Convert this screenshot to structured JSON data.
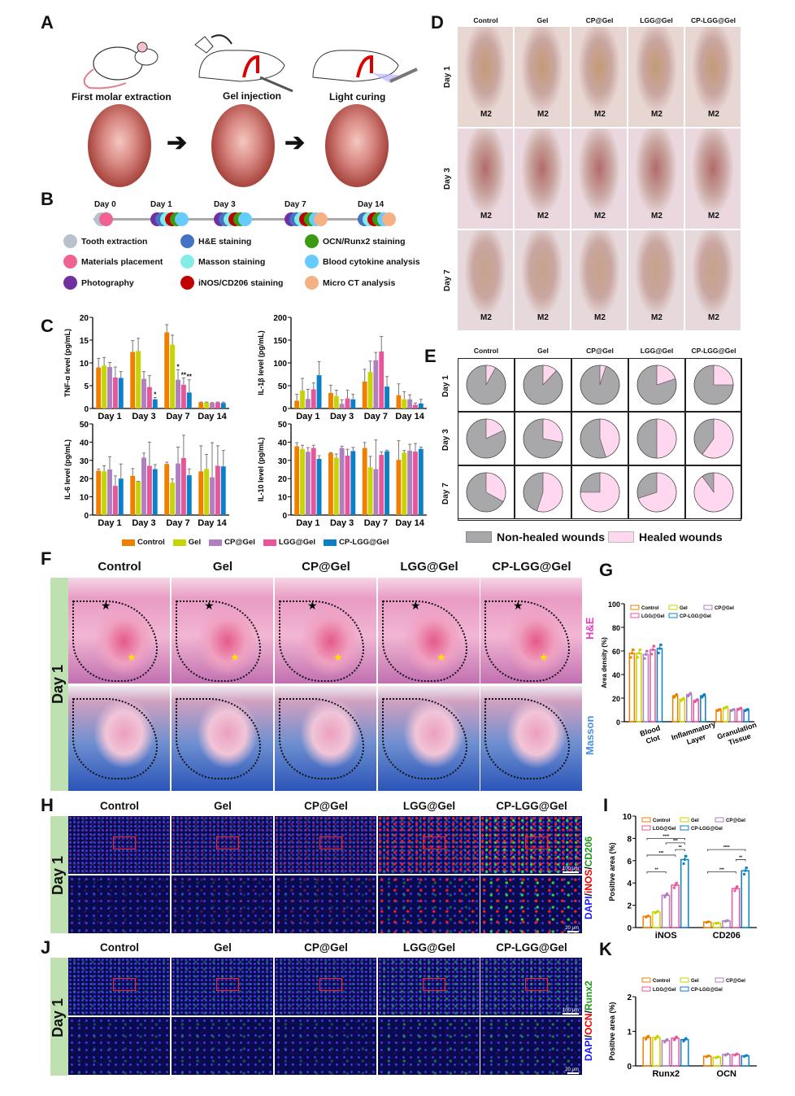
{
  "panels": {
    "A": "A",
    "B": "B",
    "C": "C",
    "D": "D",
    "E": "E",
    "F": "F",
    "G": "G",
    "H": "H",
    "I": "I",
    "J": "J",
    "K": "K"
  },
  "panel_a": {
    "steps": [
      "First molar extraction",
      "Gel injection",
      "Light curing"
    ]
  },
  "panel_b": {
    "days": [
      "Day 0",
      "Day 1",
      "Day 3",
      "Day 7",
      "Day 14"
    ],
    "legend": [
      {
        "label": "Tooth extraction",
        "color": "#b8c2cc"
      },
      {
        "label": "H&E staining",
        "color": "#4472c4"
      },
      {
        "label": "OCN/Runx2 staining",
        "color": "#3a9a10"
      },
      {
        "label": "Materials placement",
        "color": "#f06292"
      },
      {
        "label": "Masson staining",
        "color": "#84ece6"
      },
      {
        "label": "Blood cytokine analysis",
        "color": "#66ccff"
      },
      {
        "label": "Photography",
        "color": "#7030a0"
      },
      {
        "label": "iNOS/CD206 staining",
        "color": "#c00000"
      },
      {
        "label": "Micro CT analysis",
        "color": "#f4b183"
      }
    ]
  },
  "groups": [
    "Control",
    "Gel",
    "CP@Gel",
    "LGG@Gel",
    "CP-LGG@Gel"
  ],
  "group_colors": [
    "#f07f00",
    "#c8d400",
    "#b07fc0",
    "#e8559a",
    "#0a80c8"
  ],
  "days3": [
    "Day 1",
    "Day 3",
    "Day 7"
  ],
  "panel_d": {
    "site_label": "M2"
  },
  "panel_e": {
    "legend": [
      "Non-healed wounds",
      "Healed wounds"
    ],
    "colors": [
      "#a8a8ab",
      "#ffd8f0"
    ]
  },
  "panel_f": {
    "row_label": "Day 1",
    "stains": [
      "H&E",
      "Masson"
    ]
  },
  "panel_h": {
    "row_label": "Day 1",
    "stain_parts": [
      "DAPI",
      "/",
      "iNOS",
      "/",
      "CD206"
    ],
    "scale_bars": [
      "100 µm",
      "20 µm"
    ]
  },
  "panel_j": {
    "row_label": "Day 1",
    "stain_parts": [
      "DAPI",
      "/",
      "OCN",
      "/",
      "Runx2"
    ],
    "scale_bars": [
      "100 µm",
      "20 µm"
    ]
  },
  "chart_data": [
    {
      "id": "tnf",
      "type": "bar",
      "title": "",
      "ylabel": "TNF-α level (pg/mL)",
      "categories": [
        "Day 1",
        "Day 3",
        "Day 7",
        "Day 14"
      ],
      "ylim": [
        0,
        20
      ],
      "yticks": [
        0,
        5,
        10,
        15,
        20
      ],
      "series": [
        {
          "name": "Control",
          "values": [
            9,
            12.4,
            16.7,
            1.3
          ]
        },
        {
          "name": "Gel",
          "values": [
            9.4,
            12.6,
            14,
            1.3
          ]
        },
        {
          "name": "CP@Gel",
          "values": [
            9.1,
            6.5,
            6.3,
            1.2
          ]
        },
        {
          "name": "LGG@Gel",
          "values": [
            6.8,
            4.7,
            5.2,
            1.3
          ]
        },
        {
          "name": "CP-LGG@Gel",
          "values": [
            6.7,
            2,
            3.5,
            1.2
          ]
        }
      ],
      "errors": [
        [
          2,
          2.5,
          1.7,
          0.1
        ],
        [
          1.8,
          2.8,
          2.1,
          0.1
        ],
        [
          1,
          1.6,
          2.2,
          0.1
        ],
        [
          2.3,
          2.5,
          1.5,
          0.1
        ],
        [
          1.4,
          0.4,
          2.8,
          0.2
        ]
      ],
      "annotations": [
        {
          "category": "Day 3",
          "series": "CP-LGG@Gel",
          "text": "*"
        },
        {
          "category": "Day 7",
          "series": "CP@Gel",
          "text": "*"
        },
        {
          "category": "Day 7",
          "series": "LGG@Gel",
          "text": "**"
        },
        {
          "category": "Day 7",
          "series": "CP-LGG@Gel",
          "text": "**"
        }
      ]
    },
    {
      "id": "il1b",
      "type": "bar",
      "ylabel": "IL-1β level (pg/mL)",
      "categories": [
        "Day 1",
        "Day 3",
        "Day 7",
        "Day 14"
      ],
      "ylim": [
        0,
        200
      ],
      "yticks": [
        0,
        50,
        100,
        150,
        200
      ],
      "series": [
        {
          "name": "Control",
          "values": [
            17,
            34,
            59,
            29
          ]
        },
        {
          "name": "Gel",
          "values": [
            39,
            27,
            80,
            20
          ]
        },
        {
          "name": "CP@Gel",
          "values": [
            21,
            10,
            106,
            20
          ]
        },
        {
          "name": "LGG@Gel",
          "values": [
            42,
            22,
            125,
            8
          ]
        },
        {
          "name": "CP-LGG@Gel",
          "values": [
            73,
            20,
            48,
            11
          ]
        }
      ],
      "errors": [
        [
          14,
          17,
          27,
          25
        ],
        [
          27,
          13,
          24,
          17
        ],
        [
          21,
          9,
          17,
          10
        ],
        [
          14,
          18,
          33,
          4
        ],
        [
          30,
          11,
          22,
          9
        ]
      ]
    },
    {
      "id": "il6",
      "type": "bar",
      "ylabel": "IL-6 level (pg/mL)",
      "categories": [
        "Day 1",
        "Day 3",
        "Day 7",
        "Day 14"
      ],
      "ylim": [
        0,
        50
      ],
      "yticks": [
        0,
        10,
        20,
        30,
        40,
        50
      ],
      "series": [
        {
          "name": "Control",
          "values": [
            24.3,
            21.5,
            28,
            24
          ]
        },
        {
          "name": "Gel",
          "values": [
            24,
            18.5,
            17.8,
            25.3
          ]
        },
        {
          "name": "CP@Gel",
          "values": [
            25,
            31.5,
            28.3,
            20.7
          ]
        },
        {
          "name": "LGG@Gel",
          "values": [
            16,
            27,
            31.3,
            27
          ]
        },
        {
          "name": "CP-LGG@Gel",
          "values": [
            20,
            25.2,
            21.8,
            26.7
          ]
        }
      ],
      "errors": [
        [
          1,
          4,
          1,
          14
        ],
        [
          3,
          0,
          2,
          8
        ],
        [
          7,
          2.5,
          9,
          19
        ],
        [
          5.5,
          13,
          12.5,
          11
        ],
        [
          8,
          2.5,
          3.5,
          8.7
        ]
      ]
    },
    {
      "id": "il10",
      "type": "bar",
      "ylabel": "IL-10 level (pg/mL)",
      "categories": [
        "Day 1",
        "Day 3",
        "Day 7",
        "Day 14"
      ],
      "ylim": [
        0,
        50
      ],
      "yticks": [
        0,
        10,
        20,
        30,
        40,
        50
      ],
      "series": [
        {
          "name": "Control",
          "values": [
            37.7,
            34,
            36.8,
            30.3
          ]
        },
        {
          "name": "Gel",
          "values": [
            36.3,
            31.5,
            26.2,
            34.2
          ]
        },
        {
          "name": "CP@Gel",
          "values": [
            34.7,
            36.8,
            25.2,
            35.3
          ]
        },
        {
          "name": "LGG@Gel",
          "values": [
            36.8,
            32.6,
            33,
            34.8
          ]
        },
        {
          "name": "CP-LGG@Gel",
          "values": [
            30.8,
            35.1,
            35,
            36.3
          ]
        }
      ],
      "errors": [
        [
          2,
          0.3,
          3,
          10.5
        ],
        [
          2,
          2,
          6,
          1.2
        ],
        [
          2.3,
          1,
          16,
          3.5
        ],
        [
          1.5,
          3.5,
          1.7,
          4.5
        ],
        [
          1.8,
          2,
          0.6,
          1
        ]
      ]
    },
    {
      "id": "pie",
      "type": "pie",
      "rows": [
        "Day 1",
        "Day 3",
        "Day 7"
      ],
      "columns": [
        "Control",
        "Gel",
        "CP@Gel",
        "LGG@Gel",
        "CP-LGG@Gel"
      ],
      "healed_fraction": [
        [
          0.08,
          0.12,
          0.05,
          0.2,
          0.25
        ],
        [
          0.18,
          0.28,
          0.45,
          0.5,
          0.6
        ],
        [
          0.33,
          0.55,
          0.75,
          0.7,
          0.9
        ]
      ]
    },
    {
      "id": "area",
      "type": "bar",
      "ylabel": "Area density (%)",
      "categories": [
        "Blood Clot",
        "Inflammatory Layer",
        "Granulation Tissue"
      ],
      "ylim": [
        0,
        100
      ],
      "yticks": [
        0,
        20,
        40,
        60,
        80,
        100
      ],
      "series": [
        {
          "name": "Control",
          "values": [
            58,
            22,
            10
          ]
        },
        {
          "name": "Gel",
          "values": [
            58,
            19,
            12
          ]
        },
        {
          "name": "CP@Gel",
          "values": [
            57,
            23,
            10
          ]
        },
        {
          "name": "LGG@Gel",
          "values": [
            61,
            18,
            11
          ]
        },
        {
          "name": "CP-LGG@Gel",
          "values": [
            62,
            22,
            10
          ]
        }
      ]
    },
    {
      "id": "inos",
      "type": "bar",
      "ylabel": "Positive area (%)",
      "categories": [
        "iNOS",
        "CD206"
      ],
      "ylim": [
        0,
        10
      ],
      "yticks": [
        0,
        2,
        4,
        6,
        8,
        10
      ],
      "series": [
        {
          "name": "Control",
          "values": [
            1,
            0.5
          ]
        },
        {
          "name": "Gel",
          "values": [
            1.4,
            0.4
          ]
        },
        {
          "name": "CP@Gel",
          "values": [
            2.9,
            0.6
          ]
        },
        {
          "name": "LGG@Gel",
          "values": [
            3.8,
            3.5
          ]
        },
        {
          "name": "CP-LGG@Gel",
          "values": [
            6.1,
            5.1
          ]
        }
      ],
      "significance": [
        {
          "category": "iNOS",
          "from": "Control",
          "to": "CP-LGG@Gel",
          "text": "****"
        },
        {
          "category": "iNOS",
          "from": "CP@Gel",
          "to": "CP-LGG@Gel",
          "text": "***"
        },
        {
          "category": "iNOS",
          "from": "LGG@Gel",
          "to": "CP-LGG@Gel",
          "text": "**"
        },
        {
          "category": "iNOS",
          "from": "Control",
          "to": "LGG@Gel",
          "text": "***"
        },
        {
          "category": "iNOS",
          "from": "Control",
          "to": "CP@Gel",
          "text": "**"
        },
        {
          "category": "CD206",
          "from": "Control",
          "to": "CP-LGG@Gel",
          "text": "****"
        },
        {
          "category": "CD206",
          "from": "LGG@Gel",
          "to": "CP-LGG@Gel",
          "text": "**"
        },
        {
          "category": "CD206",
          "from": "Control",
          "to": "LGG@Gel",
          "text": "***"
        }
      ]
    },
    {
      "id": "runx",
      "type": "bar",
      "ylabel": "Positive area (%)",
      "categories": [
        "Runx2",
        "OCN"
      ],
      "ylim": [
        0,
        2
      ],
      "yticks": [
        0,
        1,
        2
      ],
      "series": [
        {
          "name": "Control",
          "values": [
            0.82,
            0.28
          ]
        },
        {
          "name": "Gel",
          "values": [
            0.82,
            0.25
          ]
        },
        {
          "name": "CP@Gel",
          "values": [
            0.73,
            0.33
          ]
        },
        {
          "name": "LGG@Gel",
          "values": [
            0.8,
            0.33
          ]
        },
        {
          "name": "CP-LGG@Gel",
          "values": [
            0.76,
            0.29
          ]
        }
      ]
    }
  ]
}
